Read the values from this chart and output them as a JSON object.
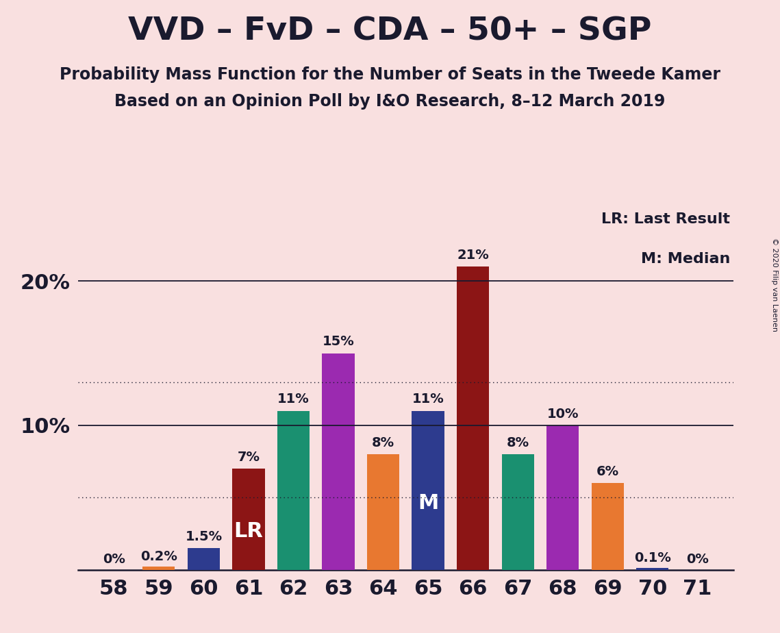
{
  "title": "VVD – FvD – CDA – 50+ – SGP",
  "subtitle1": "Probability Mass Function for the Number of Seats in the Tweede Kamer",
  "subtitle2": "Based on an Opinion Poll by I&O Research, 8–12 March 2019",
  "copyright": "© 2020 Filip van Laenen",
  "legend_lr": "LR: Last Result",
  "legend_m": "M: Median",
  "background_color": "#f9e0e0",
  "x_values": [
    58,
    59,
    60,
    61,
    62,
    63,
    64,
    65,
    66,
    67,
    68,
    69,
    70,
    71
  ],
  "y_values": [
    0.0,
    0.2,
    1.5,
    7.0,
    11.0,
    15.0,
    8.0,
    11.0,
    21.0,
    8.0,
    10.0,
    6.0,
    0.1,
    0.0
  ],
  "bar_colors": [
    "#e87830",
    "#e87830",
    "#2d3b8e",
    "#8c1515",
    "#1a9070",
    "#9b2ab0",
    "#e87830",
    "#2d3b8e",
    "#8c1515",
    "#1a9070",
    "#9b2ab0",
    "#e87830",
    "#2d3b8e",
    "#e87830"
  ],
  "bar_labels": [
    "0%",
    "0.2%",
    "1.5%",
    "7%",
    "11%",
    "15%",
    "8%",
    "11%",
    "21%",
    "8%",
    "10%",
    "6%",
    "0.1%",
    "0%"
  ],
  "label_lr_idx": 3,
  "label_m_idx": 7,
  "dotted_lines": [
    5.0,
    13.0
  ],
  "solid_lines": [
    10.0,
    20.0
  ],
  "ylim": [
    0,
    25
  ],
  "xlim": [
    57.2,
    71.8
  ],
  "title_fontsize": 34,
  "subtitle_fontsize": 17,
  "bar_label_fontsize": 14,
  "axis_tick_fontsize": 22,
  "legend_fontsize": 16,
  "lr_m_fontsize": 22
}
